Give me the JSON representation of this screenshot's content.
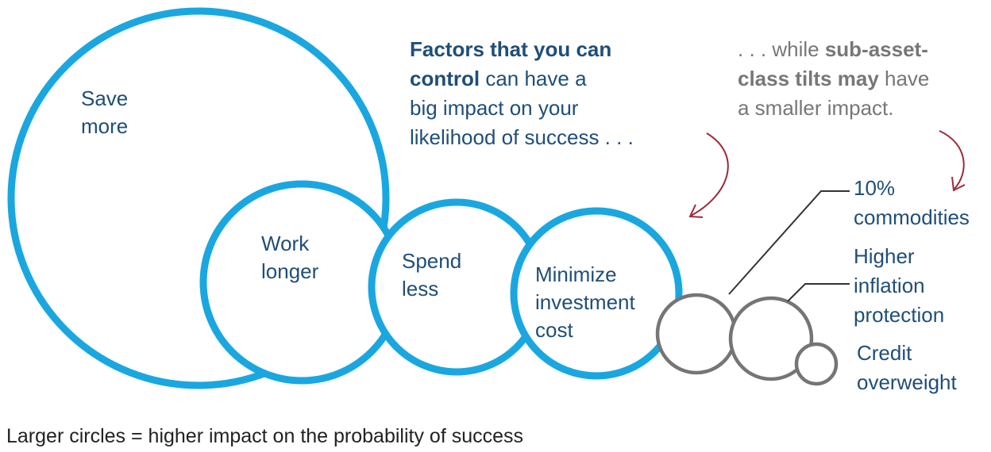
{
  "controllable_factors": [
    {
      "name": "save-more-circle",
      "lines": [
        "Save",
        "more"
      ]
    },
    {
      "name": "work-longer-circle",
      "lines": [
        "Work",
        "longer"
      ]
    },
    {
      "name": "spend-less-circle",
      "lines": [
        "Spend",
        "less"
      ]
    },
    {
      "name": "minimize-cost-circle",
      "lines": [
        "Minimize",
        "investment",
        "cost"
      ]
    }
  ],
  "tilt_factors": [
    {
      "name": "commodities-circle",
      "lines": [
        "10%",
        "commodities"
      ]
    },
    {
      "name": "inflation-protection-circle",
      "lines": [
        "Higher",
        "inflation",
        "protection"
      ]
    },
    {
      "name": "credit-overweight-circle",
      "lines": [
        "Credit",
        "overweight"
      ]
    }
  ],
  "callout_left": {
    "bold_1": "Factors that you can",
    "bold_2": "control",
    "rest_2": " can have a",
    "line_3": "big impact on your",
    "line_4": "likelihood of success . . ."
  },
  "callout_right": {
    "pre_1": ". . . while ",
    "bold_1": "sub-asset-",
    "bold_2": "class tilts may",
    "rest_2": " have",
    "line_3": "a smaller impact."
  },
  "caption": "Larger circles = higher impact on the probability of success",
  "colors": {
    "controllable": "#1aa7e0",
    "tilt": "#757575",
    "arrow": "#9e2a3a",
    "text_blue": "#1f4e79"
  }
}
